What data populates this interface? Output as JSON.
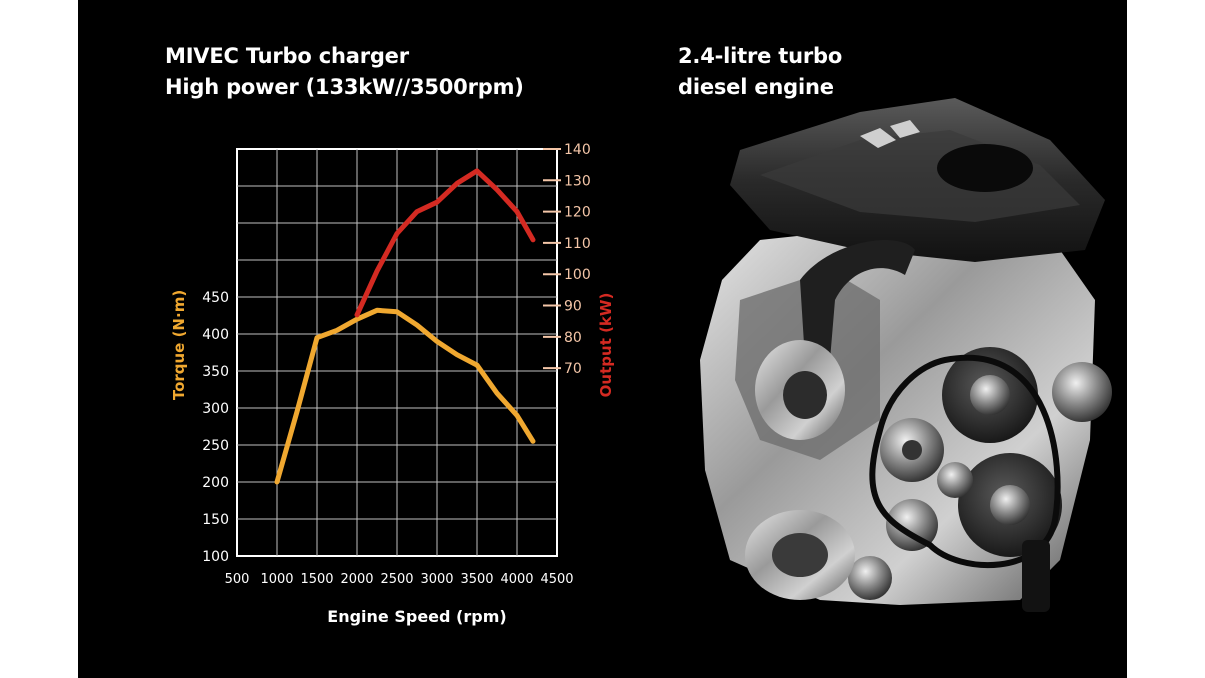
{
  "left_heading": {
    "line1": "MIVEC Turbo charger",
    "line2": "High power (133kW//3500rpm)"
  },
  "right_heading": {
    "line1": "2.4-litre turbo",
    "line2": "diesel engine"
  },
  "engine_image": {
    "icon": "engine-icon"
  },
  "colors": {
    "background": "#000000",
    "torque": "#f0a830",
    "output": "#d42a22",
    "output_ticks": "#f4c6a8",
    "grid": "#bfbfbf",
    "text": "#ffffff"
  },
  "chart_data": {
    "type": "line",
    "title": "",
    "xlabel": "Engine Speed (rpm)",
    "xlim": [
      500,
      4500
    ],
    "x_ticks": [
      500,
      1000,
      1500,
      2000,
      2500,
      3000,
      3500,
      4000,
      4500
    ],
    "grid": true,
    "axes": {
      "left": {
        "label": "Torque (N·m)",
        "range": [
          100,
          450
        ],
        "ticks": [
          100,
          150,
          200,
          250,
          300,
          350,
          400,
          450
        ]
      },
      "right": {
        "label": "Output (kW)",
        "range": [
          70,
          140
        ],
        "ticks": [
          70,
          80,
          90,
          100,
          110,
          120,
          130,
          140
        ]
      }
    },
    "series": [
      {
        "name": "Torque (N·m)",
        "axis": "left",
        "x": [
          1000,
          1250,
          1500,
          1750,
          2000,
          2250,
          2500,
          2750,
          3000,
          3250,
          3500,
          3750,
          4000,
          4200
        ],
        "y": [
          200,
          295,
          395,
          405,
          420,
          432,
          430,
          412,
          390,
          372,
          358,
          320,
          290,
          255
        ]
      },
      {
        "name": "Output (kW)",
        "axis": "right",
        "x": [
          2000,
          2250,
          2500,
          2750,
          3000,
          3250,
          3500,
          3750,
          4000,
          4200
        ],
        "y": [
          87,
          101,
          113,
          120,
          123,
          129,
          133,
          127,
          120,
          111
        ]
      }
    ]
  }
}
